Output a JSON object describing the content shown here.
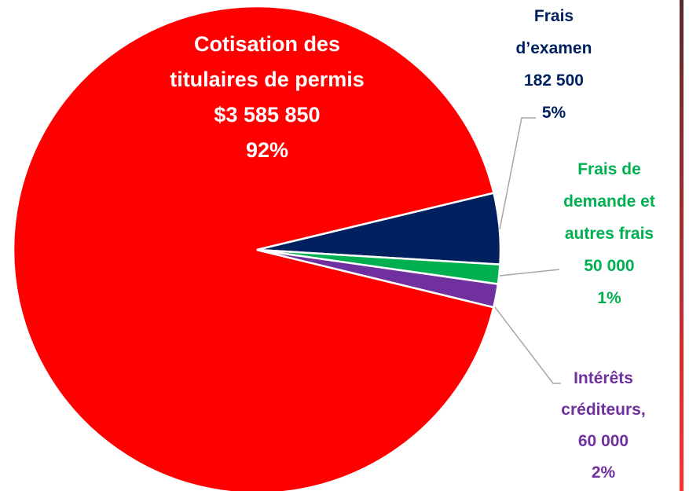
{
  "chart_data": {
    "type": "pie",
    "categories": [
      "Cotisation des titulaires de permis",
      "Frais d’examen",
      "Frais de demande et autres frais",
      "Intérêts créditeurs,"
    ],
    "values": [
      3585850,
      182500,
      50000,
      60000
    ],
    "value_labels": [
      "$3 585 850",
      "182 500",
      "50 000",
      "60 000"
    ],
    "percent_labels": [
      "92%",
      "5%",
      "1%",
      "2%"
    ],
    "colors": [
      "#ff0000",
      "#002060",
      "#00b050",
      "#7030a0"
    ]
  }
}
